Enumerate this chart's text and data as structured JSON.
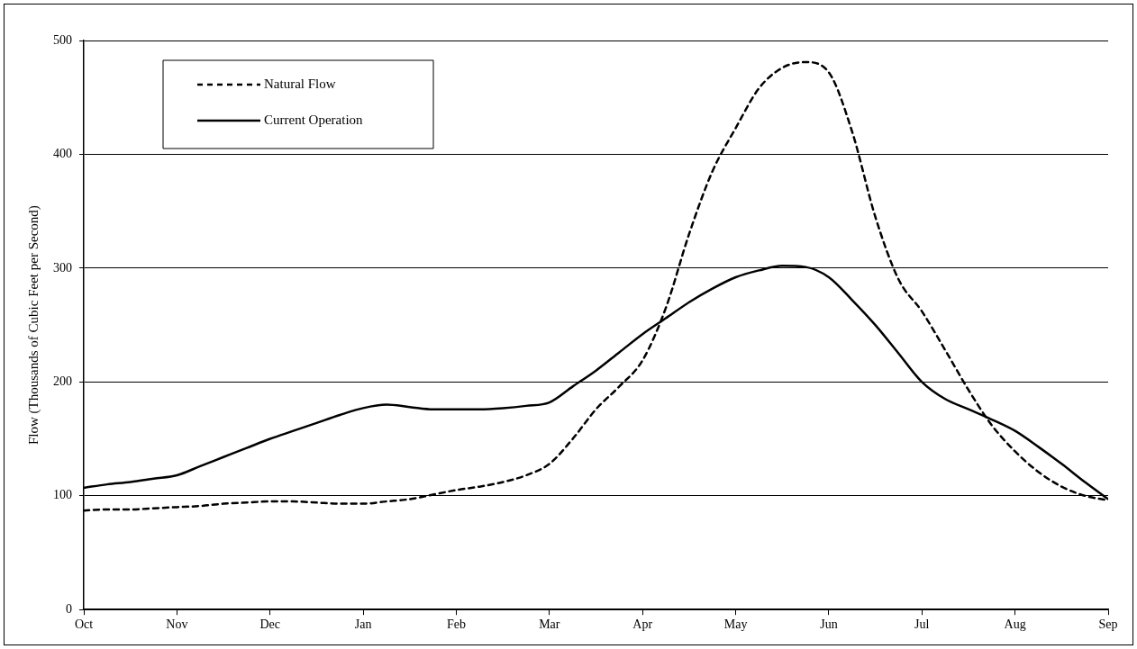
{
  "chart_data": {
    "type": "line",
    "ylabel": "Flow (Thousands of Cubic Feet per Second)",
    "categories": [
      "Oct",
      null,
      null,
      null,
      "Nov",
      null,
      null,
      null,
      "Dec",
      null,
      null,
      null,
      "Jan",
      null,
      null,
      null,
      "Feb",
      null,
      null,
      null,
      "Mar",
      null,
      null,
      null,
      "Apr",
      null,
      null,
      null,
      "May",
      null,
      null,
      null,
      "Jun",
      null,
      null,
      null,
      "Jul",
      null,
      null,
      null,
      "Aug",
      null,
      null,
      null,
      "Sep"
    ],
    "ylim": [
      0,
      500
    ],
    "yticks": [
      0,
      100,
      200,
      300,
      400,
      500
    ],
    "grid": "y",
    "legend": "top left",
    "marker": "none",
    "series": [
      {
        "name": "Natural Flow",
        "color": "#000000",
        "line_style": "dashed",
        "values": [
          87,
          88,
          88,
          89,
          90,
          91,
          93,
          94,
          95,
          95,
          94,
          93,
          93,
          95,
          97,
          101,
          105,
          108,
          112,
          118,
          128,
          150,
          176,
          196,
          219,
          265,
          330,
          385,
          423,
          458,
          476,
          481,
          472,
          420,
          345,
          290,
          262,
          228,
          193,
          162,
          139,
          121,
          108,
          100,
          96
        ]
      },
      {
        "name": "Current Operation",
        "color": "#000000",
        "line_style": "solid",
        "values": [
          107,
          110,
          112,
          115,
          118,
          126,
          134,
          142,
          150,
          157,
          164,
          171,
          177,
          180,
          178,
          176,
          176,
          176,
          177,
          179,
          182,
          196,
          210,
          226,
          242,
          256,
          270,
          282,
          292,
          298,
          302,
          301,
          292,
          272,
          250,
          225,
          200,
          185,
          176,
          167,
          157,
          143,
          128,
          112,
          97
        ]
      }
    ]
  }
}
